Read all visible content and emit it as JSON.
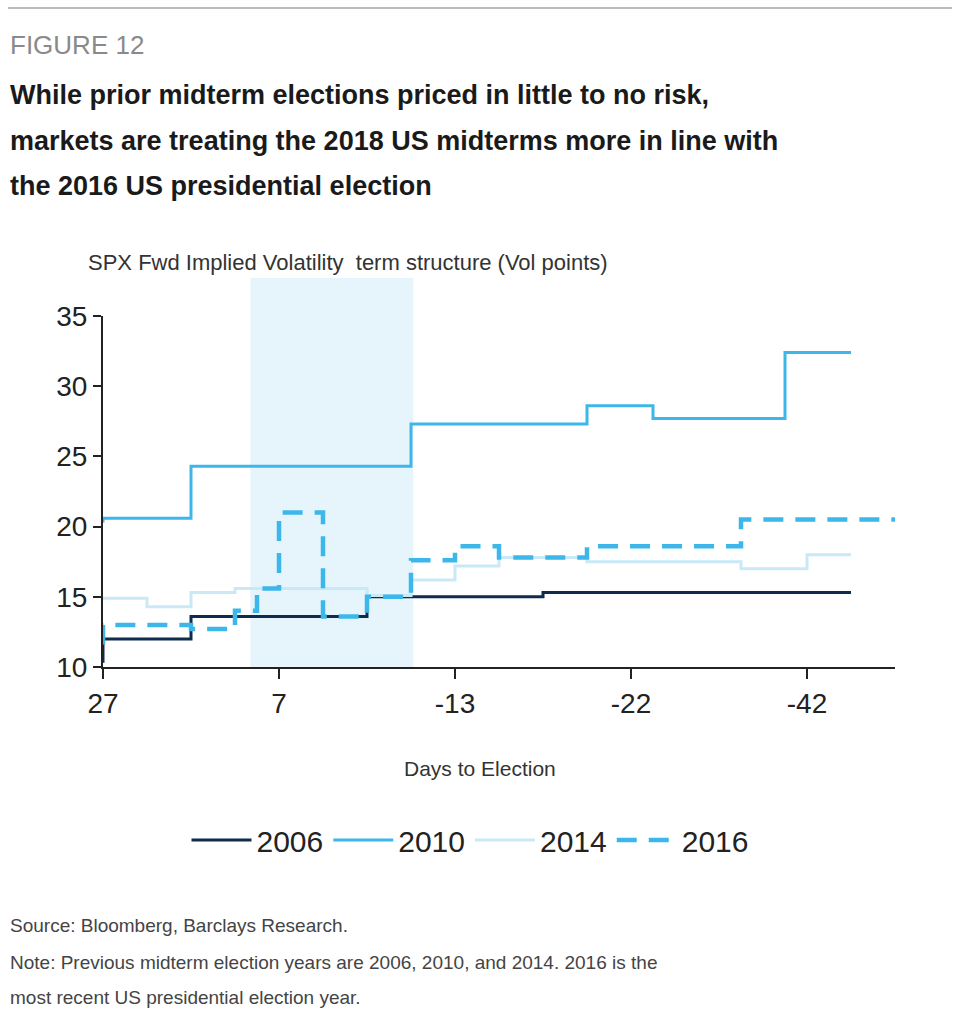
{
  "chart_data": {
    "type": "line",
    "figure_label": "FIGURE 12",
    "title": "While prior midterm elections priced in little to no risk,\nmarkets are treating the 2018 US midterms more in line with\nthe 2016 US presidential election",
    "y_label": "SPX Fwd Implied Volatility  term structure (Vol points)",
    "x_label": "Days to Election",
    "categories": [
      "27",
      null,
      null,
      null,
      null,
      null,
      null,
      null,
      "7",
      null,
      null,
      null,
      null,
      null,
      null,
      null,
      "-13",
      null,
      null,
      null,
      null,
      null,
      null,
      null,
      "-22",
      null,
      null,
      null,
      null,
      null,
      null,
      null,
      "-42",
      null,
      null,
      null,
      null
    ],
    "series": [
      {
        "name": "2006",
        "color": "#0f2c4c",
        "line_style": "solid",
        "values": [
          10.3,
          12,
          12,
          12,
          12,
          13.6,
          13.6,
          13.6,
          13.6,
          13.6,
          13.6,
          13.6,
          13.6,
          15,
          15,
          15,
          15,
          15,
          15,
          15,
          15,
          15.3,
          15.3,
          15.3,
          15.3,
          15.3,
          15.3,
          15.3,
          15.3,
          15.3,
          15.3,
          15.3,
          15.3,
          15.3,
          15.3,
          null,
          null
        ]
      },
      {
        "name": "2010",
        "color": "#3db7e9",
        "line_style": "solid",
        "values": [
          20.3,
          20.6,
          20.6,
          20.6,
          20.6,
          24.3,
          24.3,
          24.3,
          24.3,
          24.3,
          24.3,
          24.3,
          24.3,
          24.3,
          24.3,
          27.3,
          27.3,
          27.3,
          27.3,
          27.3,
          27.3,
          27.3,
          27.3,
          28.6,
          28.6,
          28.6,
          27.7,
          27.7,
          27.7,
          27.7,
          27.7,
          27.7,
          32.4,
          32.4,
          32.4,
          null,
          null
        ]
      },
      {
        "name": "2014",
        "color": "#c9e9f7",
        "line_style": "solid",
        "values": [
          14.9,
          14.9,
          14.9,
          14.3,
          14.3,
          15.3,
          15.3,
          15.6,
          15.6,
          15.6,
          15.6,
          15.6,
          15.6,
          15.1,
          15.1,
          16.2,
          16.2,
          17.2,
          17.2,
          17.8,
          17.8,
          17.8,
          17.8,
          17.5,
          17.5,
          17.5,
          17.5,
          17.5,
          17.5,
          17.5,
          17,
          17,
          17,
          18,
          18,
          null,
          null
        ]
      },
      {
        "name": "2016",
        "color": "#3db7e9",
        "line_style": "dash",
        "values": [
          11.6,
          13,
          13,
          13,
          13,
          12.7,
          12.7,
          14,
          15.6,
          21,
          21,
          13.6,
          13.6,
          15,
          15,
          17.6,
          17.6,
          18.6,
          18.6,
          17.8,
          17.8,
          17.8,
          17.8,
          18.6,
          18.6,
          18.6,
          18.6,
          18.6,
          18.6,
          18.6,
          20.5,
          20.5,
          20.5,
          20.5,
          20.5,
          20.5,
          20.5
        ]
      }
    ],
    "ylim": [
      10,
      35
    ],
    "yticks": [
      10,
      15,
      20,
      25,
      30,
      35
    ],
    "grid": false,
    "legend": "bottom",
    "shaded_range": [
      6.7,
      14.1
    ],
    "source": "Source: Bloomberg, Barclays Research.",
    "note": "Note: Previous midterm election years are 2006, 2010, and 2014. 2016 is the\nmost recent US presidential election year."
  }
}
